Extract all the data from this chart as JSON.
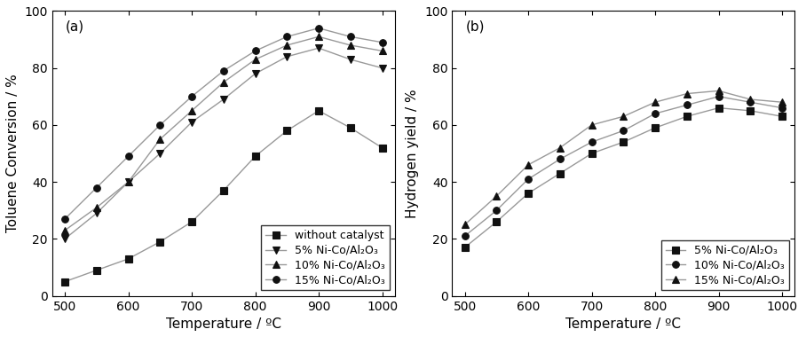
{
  "temp_a": [
    500,
    550,
    600,
    650,
    700,
    750,
    800,
    850,
    900,
    950,
    1000
  ],
  "without_catalyst": [
    5,
    9,
    13,
    19,
    26,
    37,
    49,
    58,
    65,
    59,
    52
  ],
  "ni5_a": [
    20,
    29,
    40,
    50,
    61,
    69,
    78,
    84,
    87,
    83,
    80
  ],
  "ni10_a": [
    23,
    31,
    40,
    55,
    65,
    75,
    83,
    88,
    91,
    88,
    86
  ],
  "ni15_a": [
    27,
    38,
    49,
    60,
    70,
    79,
    86,
    91,
    94,
    91,
    89
  ],
  "temp_b": [
    500,
    550,
    600,
    650,
    700,
    750,
    800,
    850,
    900,
    950,
    1000
  ],
  "ni5_b": [
    17,
    26,
    36,
    43,
    50,
    54,
    59,
    63,
    66,
    65,
    63
  ],
  "ni10_b": [
    21,
    30,
    41,
    48,
    54,
    58,
    64,
    67,
    70,
    68,
    66
  ],
  "ni15_b": [
    25,
    35,
    46,
    52,
    60,
    63,
    68,
    71,
    72,
    69,
    68
  ],
  "label_without": "without catalyst",
  "label_5": "5% Ni-Co/Al₂O₃",
  "label_10": "10% Ni-Co/Al₂O₃",
  "label_15": "15% Ni-Co/Al₂O₃",
  "xlabel": "Temperature / ºC",
  "ylabel_a": "Toluene Conversion / %",
  "ylabel_b": "Hydrogen yield / %",
  "xlim": [
    480,
    1020
  ],
  "ylim_a": [
    0,
    100
  ],
  "ylim_b": [
    0,
    100
  ],
  "line_color": "#999999",
  "marker_color": "#111111",
  "marker_without": "s",
  "marker_5": "v",
  "marker_10": "^",
  "marker_15": "o",
  "markersize": 5.5,
  "linewidth": 1.0,
  "fontsize_label": 11,
  "fontsize_tick": 10,
  "fontsize_legend": 9,
  "fontsize_panel": 11,
  "xticks": [
    500,
    600,
    700,
    800,
    900,
    1000
  ],
  "yticks_a": [
    0,
    20,
    40,
    60,
    80,
    100
  ],
  "yticks_b": [
    0,
    20,
    40,
    60,
    80,
    100
  ]
}
